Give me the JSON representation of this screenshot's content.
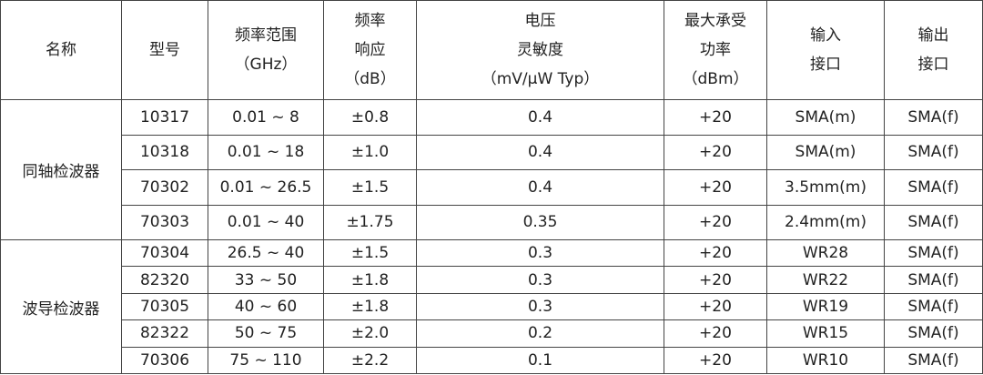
{
  "headers": {
    "name": [
      "名称"
    ],
    "model": [
      "型号"
    ],
    "freq_range": [
      "频率范围",
      "（GHz）"
    ],
    "freq_response": [
      "频率",
      "响应",
      "（dB）"
    ],
    "voltage_sensitivity": [
      "电压",
      "灵敏度",
      "（mV/μW Typ）"
    ],
    "max_power": [
      "最大承受",
      "功率",
      "（dBm）"
    ],
    "input_port": [
      "输入",
      "接口"
    ],
    "output_port": [
      "输出",
      "接口"
    ]
  },
  "groups": [
    {
      "name": "同轴检波器",
      "rows": [
        {
          "model": "10317",
          "range": "0.01 ~ 8",
          "response": "±0.8",
          "sensitivity": "0.4",
          "power": "+20",
          "input": "SMA(m)",
          "output": "SMA(f)"
        },
        {
          "model": "10318",
          "range": "0.01 ~ 18",
          "response": "±1.0",
          "sensitivity": "0.4",
          "power": "+20",
          "input": "SMA(m)",
          "output": "SMA(f)"
        },
        {
          "model": "70302",
          "range": "0.01 ~ 26.5",
          "response": "±1.5",
          "sensitivity": "0.4",
          "power": "+20",
          "input": "3.5mm(m)",
          "output": "SMA(f)"
        },
        {
          "model": "70303",
          "range": "0.01 ~ 40",
          "response": "±1.75",
          "sensitivity": "0.35",
          "power": "+20",
          "input": "2.4mm(m)",
          "output": "SMA(f)"
        }
      ]
    },
    {
      "name": "波导检波器",
      "rows": [
        {
          "model": "70304",
          "range": "26.5 ~ 40",
          "response": "±1.5",
          "sensitivity": "0.3",
          "power": "+20",
          "input": "WR28",
          "output": "SMA(f)"
        },
        {
          "model": "82320",
          "range": "33 ~ 50",
          "response": "±1.8",
          "sensitivity": "0.3",
          "power": "+20",
          "input": "WR22",
          "output": "SMA(f)"
        },
        {
          "model": "70305",
          "range": "40 ~ 60",
          "response": "±1.8",
          "sensitivity": "0.3",
          "power": "+20",
          "input": "WR19",
          "output": "SMA(f)"
        },
        {
          "model": "82322",
          "range": "50 ~ 75",
          "response": "±2.0",
          "sensitivity": "0.2",
          "power": "+20",
          "input": "WR15",
          "output": "SMA(f)"
        },
        {
          "model": "70306",
          "range": "75 ~ 110",
          "response": "±2.2",
          "sensitivity": "0.1",
          "power": "+20",
          "input": "WR10",
          "output": "SMA(f)"
        }
      ]
    }
  ]
}
